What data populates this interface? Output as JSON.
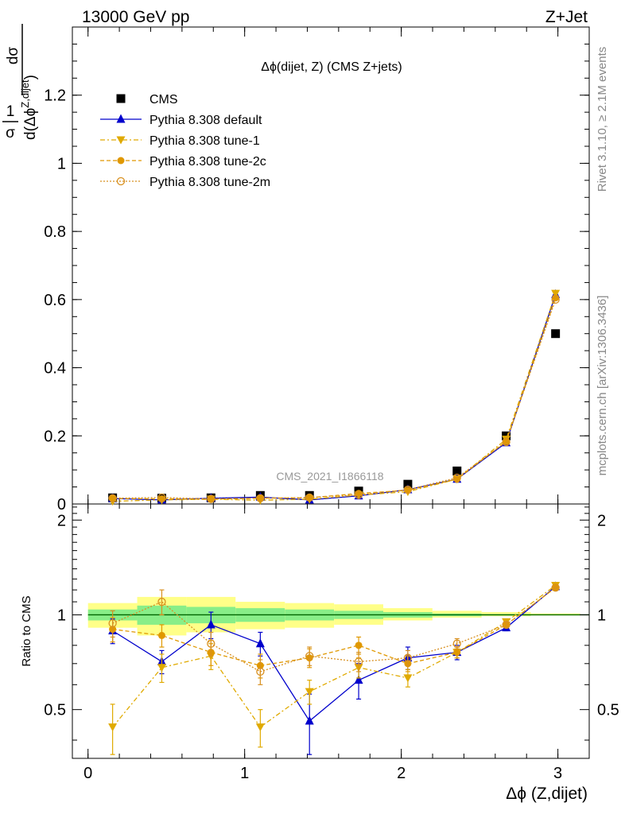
{
  "header": {
    "left": "13000 GeV pp",
    "right": "Z+Jet"
  },
  "side_labels": {
    "rivet": "Rivet 3.1.10, ≥ 2.1M events",
    "mcplots": "mcplots.cern.ch [arXiv:1306.3436]"
  },
  "main_title": "Δϕ(dijet, Z) (CMS Z+jets)",
  "watermark": "CMS_2021_I1866118",
  "ylabel_main": {
    "frac_num": "1",
    "frac_den": "σ",
    "d_num": "dσ",
    "d_den": "d(Δϕ",
    "d_den_sup": "Z,dijet",
    "d_den_close": ")"
  },
  "ylabel_ratio": "Ratio to CMS",
  "xlabel": "Δϕ (Z,dijet)",
  "colors": {
    "data": "#000000",
    "default": "#0000cc",
    "tune1": "#e0aa00",
    "tune2c": "#e09800",
    "tune2m": "#d89020",
    "band_outer": "#ffff88",
    "band_inner": "#88ee88",
    "ref_line": "#006600"
  },
  "chart_data": [
    {
      "type": "scatter",
      "x": [
        0.157,
        0.471,
        0.785,
        1.1,
        1.414,
        1.728,
        2.042,
        2.356,
        2.67,
        2.985
      ],
      "xlim": [
        -0.1,
        3.2
      ],
      "ylim": [
        0,
        1.4
      ],
      "yticks": [
        0,
        0.2,
        0.4,
        0.6,
        0.8,
        1,
        1.2
      ],
      "ytick_labels": [
        "0",
        "0.2",
        "0.4",
        "0.6",
        "0.8",
        "1",
        "1.2"
      ],
      "legend_position": "top-left",
      "series": [
        {
          "name": "CMS",
          "key": "data",
          "marker": "square",
          "values": [
            0.018,
            0.017,
            0.018,
            0.025,
            0.025,
            0.038,
            0.058,
            0.097,
            0.2,
            0.5
          ]
        },
        {
          "name": "Pythia 8.308 default",
          "key": "default",
          "marker": "triangle-up",
          "line": "solid",
          "values": [
            0.016,
            0.012,
            0.017,
            0.02,
            0.012,
            0.024,
            0.042,
            0.073,
            0.18,
            0.615
          ]
        },
        {
          "name": "Pythia 8.308 tune-1",
          "key": "tune1",
          "marker": "triangle-down",
          "line": "dashdot",
          "values": [
            0.008,
            0.012,
            0.014,
            0.011,
            0.014,
            0.026,
            0.036,
            0.073,
            0.19,
            0.618
          ]
        },
        {
          "name": "Pythia 8.308 tune-2c",
          "key": "tune2c",
          "marker": "circle",
          "line": "dashed",
          "values": [
            0.016,
            0.015,
            0.014,
            0.017,
            0.018,
            0.031,
            0.04,
            0.073,
            0.184,
            0.605
          ]
        },
        {
          "name": "Pythia 8.308 tune-2m",
          "key": "tune2m",
          "marker": "circle-open",
          "line": "dotted",
          "values": [
            0.017,
            0.019,
            0.015,
            0.017,
            0.019,
            0.027,
            0.042,
            0.077,
            0.182,
            0.6
          ]
        }
      ]
    },
    {
      "type": "line",
      "ylabel": "Ratio to CMS",
      "xlabel": "Δϕ (Z,dijet)",
      "x": [
        0.157,
        0.471,
        0.785,
        1.1,
        1.414,
        1.728,
        2.042,
        2.356,
        2.67,
        2.985
      ],
      "x_edges": [
        0,
        0.314,
        0.628,
        0.942,
        1.257,
        1.571,
        1.885,
        2.199,
        2.513,
        2.827,
        3.142
      ],
      "xlim": [
        -0.1,
        3.2
      ],
      "ylim": [
        0.35,
        2.25
      ],
      "yticks": [
        0.5,
        1,
        2
      ],
      "ytick_labels": [
        "0.5",
        "1",
        "2"
      ],
      "xticks": [
        0,
        1,
        2,
        3
      ],
      "xtick_labels": [
        "0",
        "1",
        "2",
        "3"
      ],
      "band_outer": [
        [
          0.91,
          1.09
        ],
        [
          0.86,
          1.14
        ],
        [
          0.88,
          1.14
        ],
        [
          0.9,
          1.1
        ],
        [
          0.91,
          1.09
        ],
        [
          0.93,
          1.08
        ],
        [
          0.96,
          1.05
        ],
        [
          0.98,
          1.03
        ],
        [
          0.99,
          1.02
        ],
        [
          0.995,
          1.01
        ]
      ],
      "band_inner": [
        [
          0.96,
          1.04
        ],
        [
          0.93,
          1.07
        ],
        [
          0.94,
          1.06
        ],
        [
          0.95,
          1.05
        ],
        [
          0.96,
          1.04
        ],
        [
          0.97,
          1.03
        ],
        [
          0.98,
          1.02
        ],
        [
          0.99,
          1.01
        ],
        [
          0.995,
          1.005
        ],
        [
          0.998,
          1.003
        ]
      ],
      "series": [
        {
          "name": "Pythia 8.308 default",
          "key": "default",
          "marker": "triangle-up",
          "line": "solid",
          "values": [
            0.89,
            0.71,
            0.93,
            0.81,
            0.46,
            0.62,
            0.73,
            0.76,
            0.91,
            1.23
          ],
          "errors": [
            0.08,
            0.06,
            0.09,
            0.07,
            0.1,
            0.08,
            0.06,
            0.04,
            0.02,
            0.01
          ]
        },
        {
          "name": "Pythia 8.308 tune-1",
          "key": "tune1",
          "marker": "triangle-down",
          "line": "dashdot",
          "values": [
            0.44,
            0.68,
            0.74,
            0.44,
            0.57,
            0.68,
            0.63,
            0.76,
            0.95,
            1.24
          ],
          "errors": [
            0.08,
            0.07,
            0.07,
            0.06,
            0.05,
            0.05,
            0.04,
            0.03,
            0.02,
            0.01
          ]
        },
        {
          "name": "Pythia 8.308 tune-2c",
          "key": "tune2c",
          "marker": "circle",
          "line": "dashed",
          "values": [
            0.9,
            0.86,
            0.76,
            0.69,
            0.73,
            0.8,
            0.7,
            0.76,
            0.93,
            1.22
          ],
          "errors": [
            0.08,
            0.07,
            0.07,
            0.06,
            0.05,
            0.05,
            0.04,
            0.03,
            0.02,
            0.01
          ]
        },
        {
          "name": "Pythia 8.308 tune-2m",
          "key": "tune2m",
          "marker": "circle-open",
          "line": "dotted",
          "values": [
            0.94,
            1.1,
            0.81,
            0.66,
            0.74,
            0.71,
            0.73,
            0.81,
            0.93,
            1.22
          ],
          "errors": [
            0.09,
            0.1,
            0.07,
            0.06,
            0.05,
            0.05,
            0.04,
            0.03,
            0.02,
            0.01
          ]
        }
      ]
    }
  ]
}
